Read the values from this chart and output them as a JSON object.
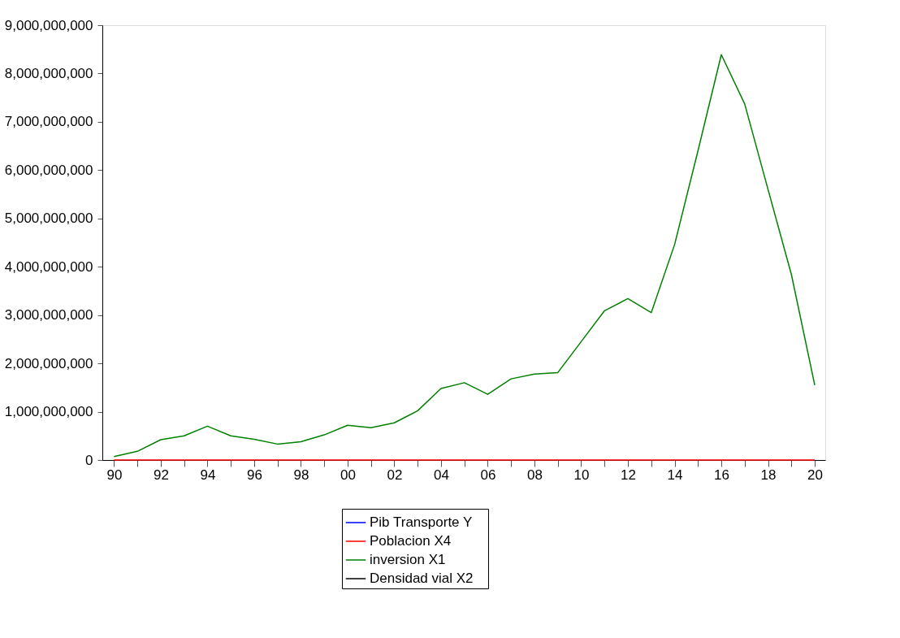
{
  "chart_data": {
    "type": "line",
    "categories": [
      "90",
      null,
      "92",
      null,
      "94",
      null,
      "96",
      null,
      "98",
      null,
      "00",
      null,
      "02",
      null,
      "04",
      null,
      "06",
      null,
      "08",
      null,
      "10",
      null,
      "12",
      null,
      "14",
      null,
      "16",
      null,
      "18",
      null,
      "20"
    ],
    "series": [
      {
        "name": "Pib Transporte    Y",
        "color": "#0000ff",
        "values": [
          null,
          null,
          null,
          null,
          null,
          null,
          null,
          null,
          null,
          null,
          null,
          null,
          null,
          null,
          null,
          null,
          null,
          null,
          null,
          null,
          null,
          null,
          null,
          null,
          null,
          null,
          null,
          null,
          null,
          null,
          null
        ]
      },
      {
        "name": "Poblacion X4",
        "color": "#ff0000",
        "values": [
          0,
          0,
          0,
          0,
          0,
          0,
          0,
          0,
          0,
          0,
          0,
          0,
          0,
          0,
          0,
          0,
          0,
          0,
          0,
          0,
          0,
          0,
          0,
          0,
          0,
          0,
          0,
          0,
          0,
          0,
          0
        ]
      },
      {
        "name": "inversion X1",
        "color": "#008000",
        "values": [
          70000000,
          180000000,
          420000000,
          500000000,
          700000000,
          500000000,
          430000000,
          330000000,
          380000000,
          520000000,
          720000000,
          670000000,
          770000000,
          1020000000,
          1480000000,
          1600000000,
          1360000000,
          1680000000,
          1780000000,
          1810000000,
          2450000000,
          3090000000,
          3340000000,
          3050000000,
          4460000000,
          6400000000,
          8390000000,
          7370000000,
          5600000000,
          3840000000,
          1550000000
        ]
      },
      {
        "name": "Densidad vial X2",
        "color": "#000000",
        "values": [
          null,
          null,
          null,
          null,
          null,
          null,
          null,
          null,
          null,
          null,
          null,
          null,
          null,
          null,
          null,
          null,
          null,
          null,
          null,
          null,
          null,
          null,
          null,
          null,
          null,
          null,
          null,
          null,
          null,
          null,
          null
        ]
      }
    ],
    "ylim": [
      0,
      9000000000
    ],
    "yticks": [
      0,
      {
        "value": 1000000000,
        "label": "1,000,000,000"
      },
      {
        "value": 2000000000,
        "label": "2,000,000,000"
      },
      {
        "value": 3000000000,
        "label": "3,000,000,000"
      },
      {
        "value": 4000000000,
        "label": "4,000,000,000"
      },
      {
        "value": 5000000000,
        "label": "5,000,000,000"
      },
      {
        "value": 6000000000,
        "label": "6,000,000,000"
      },
      {
        "value": 7000000000,
        "label": "7,000,000,000"
      },
      {
        "value": 8000000000,
        "label": "8,000,000,000"
      },
      {
        "value": 9000000000,
        "label": "9,000,000,000"
      }
    ],
    "grid": false,
    "legend": "bottom",
    "line_style": "solid",
    "marker": "none"
  }
}
